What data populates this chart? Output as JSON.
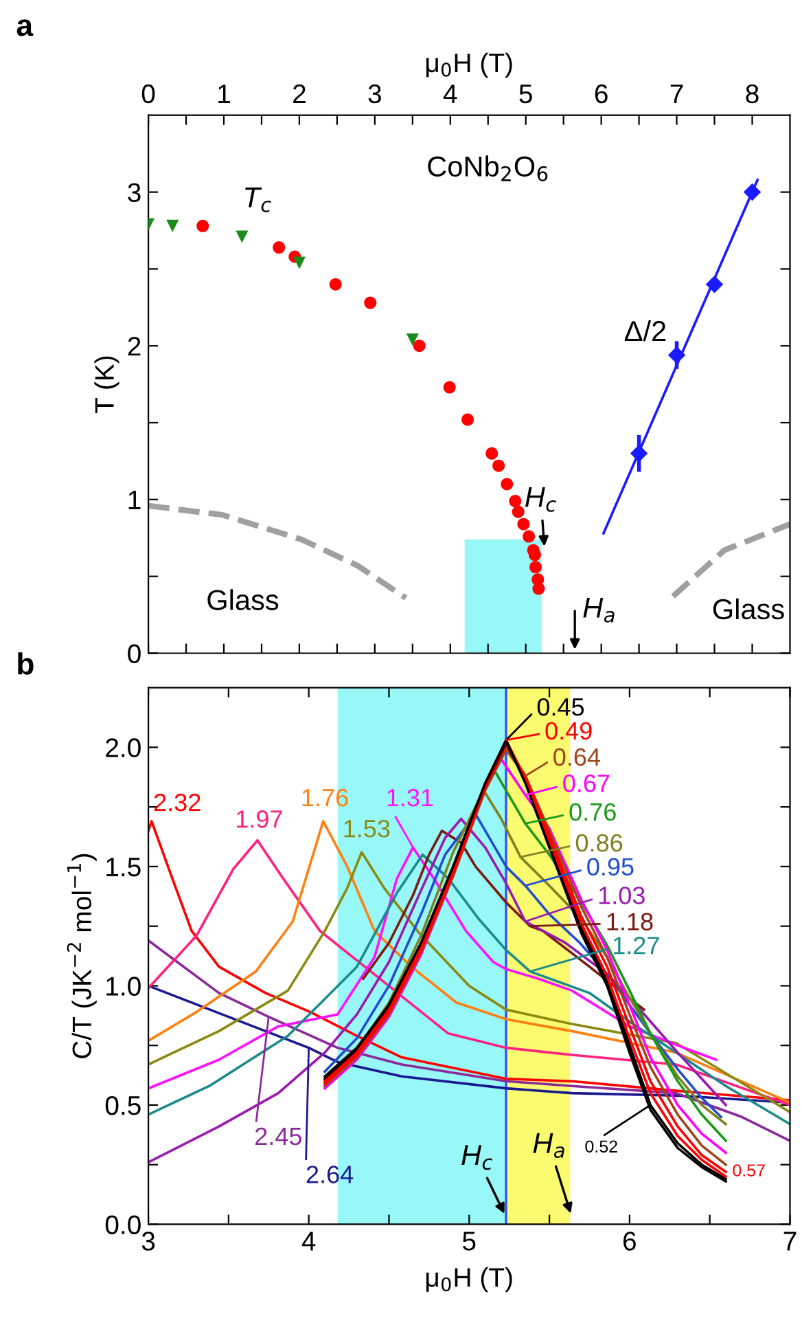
{
  "chart_data": [
    {
      "type": "scatter",
      "title": "a",
      "xlabel": "μ$_{0}$H (T)",
      "ylabel": "T (K)",
      "xlim": [
        0,
        8.5
      ],
      "xticks": [
        0,
        {
          "value": 0.5,
          "label": null
        },
        1,
        {
          "value": 1.5,
          "label": null
        },
        2,
        {
          "value": 2.5,
          "label": null
        },
        3,
        {
          "value": 3.5,
          "label": null
        },
        4,
        {
          "value": 4.5,
          "label": null
        },
        5,
        {
          "value": 5.5,
          "label": null
        },
        6,
        {
          "value": 6.5,
          "label": null
        },
        7,
        {
          "value": 7.5,
          "label": null
        },
        8
      ],
      "ylim": [
        0,
        3.5
      ],
      "yticks": [
        0,
        {
          "value": 0.5,
          "label": null
        },
        1,
        {
          "value": 1.5,
          "label": null
        },
        2,
        {
          "value": 2.5,
          "label": null
        },
        3
      ],
      "grid": false,
      "series": [
        {
          "type": "area",
          "color": "#98f8f8",
          "x": [
            4.19,
            5.21
          ],
          "values": [
            0.74,
            0.74
          ]
        },
        {
          "type": "line",
          "color": "#a0a0a0",
          "line_style": "dashed",
          "marker": "none",
          "x": [
            0,
            0.98,
            2.03,
            2.77,
            3.41
          ],
          "values": [
            0.96,
            0.9,
            0.74,
            0.57,
            0.36
          ]
        },
        {
          "type": "line",
          "color": "#a0a0a0",
          "line_style": "dashed",
          "marker": "none",
          "x": [
            6.95,
            7.63,
            8.5
          ],
          "values": [
            0.37,
            0.67,
            0.84
          ]
        },
        {
          "type": "scatter",
          "color": "#ff0000",
          "marker": "circle",
          "x": [
            0.72,
            1.73,
            1.94,
            2.48,
            2.94,
            3.59,
            3.99,
            4.23,
            4.55,
            4.64,
            4.75,
            4.86,
            4.9,
            4.97,
            5.04,
            5.1,
            5.12,
            5.13,
            5.16,
            5.17
          ],
          "values": [
            2.78,
            2.64,
            2.58,
            2.4,
            2.28,
            2.0,
            1.73,
            1.52,
            1.3,
            1.22,
            1.1,
            0.99,
            0.92,
            0.84,
            0.76,
            0.67,
            0.64,
            0.56,
            0.48,
            0.42
          ]
        },
        {
          "type": "scatter",
          "color": "#1a8a1a",
          "marker": "triangle",
          "x": [
            0,
            0.32,
            1.24,
            2.0,
            3.5
          ],
          "values": [
            2.79,
            2.78,
            2.71,
            2.54,
            2.04
          ]
        },
        {
          "type": "line",
          "color": "#1a1aff",
          "marker": "none",
          "x": [
            6.03,
            8.07
          ],
          "values": [
            0.78,
            3.08
          ]
        },
        {
          "type": "scatter",
          "color": "#1a1aff",
          "marker": "diamond",
          "x": [
            6.5,
            7,
            7.5,
            8
          ],
          "values": [
            1.3,
            1.94,
            2.4,
            3.0
          ],
          "errors": [
            0.12,
            0.09,
            null,
            null
          ]
        }
      ],
      "annotations": [
        "CoNb$_{2}$O$_{6}$",
        "T$_{c}$",
        "Δ/2",
        "Glass",
        "Glass",
        {
          "text": "H$_{c}$",
          "x": 5.25,
          "y": 0.67
        },
        "H$_{a}$"
      ]
    },
    {
      "type": "line",
      "title": "b",
      "xlabel": "μ$_{0}$H (T)",
      "ylabel": "C/T (JK$^{−2}$ mol$^{−1}$)",
      "xlim": [
        3,
        7
      ],
      "xticks": [
        3,
        {
          "value": 3.5,
          "label": null
        },
        4,
        {
          "value": 4.5,
          "label": null
        },
        5,
        {
          "value": 5.5,
          "label": null
        },
        6,
        {
          "value": 6.5,
          "label": null
        },
        7
      ],
      "ylim": [
        0,
        2.25
      ],
      "yticks": [
        "0.0",
        {
          "value": 0.25,
          "label": null
        },
        {
          "value": 0.5,
          "label": "0.5"
        },
        {
          "value": 0.75,
          "label": null
        },
        {
          "value": 1.0,
          "label": "1.0"
        },
        {
          "value": 1.25,
          "label": null
        },
        {
          "value": 1.5,
          "label": "1.5"
        },
        {
          "value": 1.75,
          "label": null
        },
        {
          "value": 2.0,
          "label": "2.0"
        }
      ],
      "grid": false,
      "legend": "right",
      "marker": "none",
      "line_style": "solid",
      "bands": [
        {
          "axis": "x",
          "from": 4.18,
          "to": 5.23,
          "color": "#98f8f8"
        },
        {
          "axis": "x",
          "from": 5.23,
          "to": 5.63,
          "color": "#fbfb70"
        }
      ],
      "ref_lines": [
        {
          "axis": "x",
          "value": 5.23,
          "color": "#3050ff"
        }
      ],
      "series": [
        {
          "name": "0.45",
          "color": "#000000",
          "x": [
            4.1,
            4.3,
            4.5,
            4.7,
            4.9,
            5.1,
            5.23,
            5.35,
            5.5,
            5.7,
            5.86,
            6.0,
            6.13,
            6.3,
            6.45,
            6.6
          ],
          "values": [
            0.62,
            0.74,
            0.92,
            1.18,
            1.5,
            1.85,
            2.03,
            1.85,
            1.58,
            1.22,
            1.0,
            0.72,
            0.48,
            0.32,
            0.24,
            0.18
          ]
        },
        {
          "name": "0.49",
          "color": "#ff0000",
          "x": [
            4.1,
            4.3,
            4.5,
            4.7,
            4.9,
            5.1,
            5.23,
            5.35,
            5.5,
            5.7,
            5.86,
            6.0,
            6.13,
            6.3,
            6.45,
            6.6
          ],
          "values": [
            0.6,
            0.72,
            0.9,
            1.16,
            1.48,
            1.84,
            2.03,
            1.87,
            1.61,
            1.26,
            1.04,
            0.78,
            0.55,
            0.37,
            0.27,
            0.2
          ]
        },
        {
          "name": "0.52",
          "color": "#000000",
          "x": [
            4.1,
            4.3,
            4.5,
            4.7,
            4.9,
            5.1,
            5.23,
            5.35,
            5.5,
            5.7,
            5.86,
            6.0,
            6.13,
            6.3,
            6.45,
            6.6
          ],
          "values": [
            0.61,
            0.73,
            0.91,
            1.17,
            1.49,
            1.84,
            2.02,
            1.86,
            1.59,
            1.24,
            1.02,
            0.75,
            0.5,
            0.34,
            0.25,
            0.19
          ]
        },
        {
          "name": "0.57",
          "color": "#ff0000",
          "x": [
            4.1,
            4.3,
            4.5,
            4.7,
            4.9,
            5.1,
            5.23,
            5.35,
            5.5,
            5.7,
            5.86,
            6.0,
            6.13,
            6.3,
            6.45,
            6.6
          ],
          "values": [
            0.59,
            0.71,
            0.89,
            1.15,
            1.47,
            1.83,
            2.01,
            1.88,
            1.63,
            1.29,
            1.08,
            0.83,
            0.6,
            0.41,
            0.29,
            0.22
          ]
        },
        {
          "name": "0.64",
          "color": "#a0461e",
          "x": [
            4.1,
            4.3,
            4.5,
            4.7,
            4.9,
            5.1,
            5.23,
            5.35,
            5.5,
            5.7,
            5.86,
            6.0,
            6.13,
            6.3,
            6.45,
            6.6
          ],
          "values": [
            0.58,
            0.7,
            0.88,
            1.14,
            1.46,
            1.82,
            1.99,
            1.88,
            1.65,
            1.33,
            1.12,
            0.88,
            0.66,
            0.46,
            0.33,
            0.25
          ]
        },
        {
          "name": "0.67",
          "color": "#ff00ff",
          "x": [
            4.1,
            4.3,
            4.5,
            4.7,
            4.9,
            5.1,
            5.2,
            5.35,
            5.5,
            5.7,
            5.86,
            6.0,
            6.13,
            6.3,
            6.45,
            6.6
          ],
          "values": [
            0.57,
            0.69,
            0.87,
            1.13,
            1.46,
            1.84,
            1.95,
            1.8,
            1.66,
            1.36,
            1.15,
            0.92,
            0.7,
            0.5,
            0.38,
            0.3
          ]
        },
        {
          "name": "0.76",
          "color": "#1a9a1a",
          "x": [
            4.1,
            4.3,
            4.5,
            4.7,
            4.9,
            5.05,
            5.16,
            5.35,
            5.5,
            5.7,
            5.86,
            6.0,
            6.13,
            6.3,
            6.45,
            6.6
          ],
          "values": [
            0.58,
            0.71,
            0.9,
            1.17,
            1.5,
            1.76,
            1.9,
            1.68,
            1.55,
            1.35,
            1.17,
            0.98,
            0.8,
            0.6,
            0.46,
            0.35
          ]
        },
        {
          "name": "0.86",
          "color": "#808020",
          "x": [
            4.1,
            4.3,
            4.5,
            4.7,
            4.9,
            5.09,
            5.2,
            5.32,
            5.5,
            5.7,
            5.86,
            6.0,
            6.13,
            6.3,
            6.45,
            6.6
          ],
          "values": [
            0.6,
            0.73,
            0.93,
            1.21,
            1.56,
            1.82,
            1.7,
            1.54,
            1.42,
            1.28,
            1.12,
            0.95,
            0.8,
            0.62,
            0.5,
            0.42
          ]
        },
        {
          "name": "0.95",
          "color": "#1f4fd0",
          "x": [
            4.1,
            4.3,
            4.5,
            4.7,
            4.85,
            5.04,
            5.23,
            5.35,
            5.5,
            5.69,
            5.86,
            6.0,
            6.13,
            6.3,
            6.45,
            6.57
          ],
          "values": [
            0.64,
            0.78,
            1.0,
            1.3,
            1.55,
            1.72,
            1.5,
            1.42,
            1.3,
            1.18,
            1.05,
            0.92,
            0.8,
            0.65,
            0.53,
            0.45
          ]
        },
        {
          "name": "1.03",
          "color": "#9a1ab0",
          "x": [
            3.0,
            3.44,
            3.81,
            4.1,
            4.3,
            4.5,
            4.7,
            4.85,
            4.95,
            5.1,
            5.23,
            5.35,
            5.6,
            5.86,
            6.0,
            6.3,
            6.6
          ],
          "values": [
            0.26,
            0.41,
            0.55,
            0.72,
            0.88,
            1.1,
            1.4,
            1.62,
            1.7,
            1.58,
            1.43,
            1.27,
            1.18,
            1.05,
            0.95,
            0.72,
            0.5
          ]
        },
        {
          "name": "1.18",
          "color": "#7a1a10",
          "x": [
            4.34,
            4.5,
            4.65,
            4.75,
            4.83,
            4.95,
            5.04,
            5.23,
            5.38,
            5.46,
            5.75,
            5.9,
            6.09
          ],
          "values": [
            1.03,
            1.18,
            1.38,
            1.55,
            1.65,
            1.6,
            1.5,
            1.35,
            1.25,
            1.23,
            1.08,
            1.0,
            0.9
          ]
        },
        {
          "name": "1.27",
          "color": "#1a8a8a",
          "x": [
            3.0,
            3.38,
            3.87,
            4.3,
            4.55,
            4.71,
            4.87,
            5.06,
            5.23,
            5.38,
            5.75,
            6.0,
            6.29,
            6.6,
            7.0
          ],
          "values": [
            0.46,
            0.58,
            0.79,
            1.08,
            1.39,
            1.55,
            1.45,
            1.28,
            1.15,
            1.06,
            0.97,
            0.85,
            0.72,
            0.58,
            0.42
          ]
        },
        {
          "name": "1.31",
          "color": "#ff10ff",
          "x": [
            3.0,
            3.44,
            3.81,
            4.18,
            4.41,
            4.55,
            4.65,
            4.78,
            4.98,
            5.15,
            5.23,
            5.43,
            5.64,
            6.0,
            6.3,
            6.54
          ],
          "values": [
            0.57,
            0.69,
            0.83,
            0.88,
            1.12,
            1.45,
            1.58,
            1.45,
            1.23,
            1.1,
            1.07,
            1.03,
            0.98,
            0.83,
            0.75,
            0.69
          ]
        },
        {
          "name": "1.53",
          "color": "#8a8a10",
          "x": [
            3.0,
            3.44,
            3.87,
            4.1,
            4.24,
            4.33,
            4.47,
            4.69,
            5.0,
            5.23,
            5.64,
            6.29,
            7.0
          ],
          "values": [
            0.67,
            0.81,
            0.98,
            1.23,
            1.41,
            1.56,
            1.41,
            1.22,
            1.0,
            0.9,
            0.84,
            0.76,
            0.47
          ]
        },
        {
          "name": "1.76",
          "color": "#ff8010",
          "x": [
            3.0,
            3.3,
            3.67,
            3.9,
            4.09,
            4.24,
            4.41,
            4.64,
            4.92,
            5.23,
            5.64,
            6.29,
            7.0
          ],
          "values": [
            0.77,
            0.89,
            1.06,
            1.27,
            1.69,
            1.5,
            1.23,
            1.08,
            0.93,
            0.86,
            0.81,
            0.72,
            0.51
          ]
        },
        {
          "name": "1.97",
          "color": "#ff2080",
          "x": [
            3.0,
            3.3,
            3.53,
            3.68,
            3.84,
            4.07,
            4.35,
            4.87,
            5.23,
            5.64,
            6.29,
            7.0
          ],
          "values": [
            0.99,
            1.21,
            1.49,
            1.61,
            1.45,
            1.23,
            1.08,
            0.8,
            0.74,
            0.71,
            0.67,
            0.5
          ]
        },
        {
          "name": "2.32",
          "color": "#ff0000",
          "x": [
            3.0,
            3.02,
            3.16,
            3.27,
            3.44,
            3.73,
            4.01,
            4.3,
            4.58,
            5.23,
            5.64,
            6.29,
            7.0
          ],
          "values": [
            1.65,
            1.69,
            1.43,
            1.23,
            1.08,
            0.97,
            0.89,
            0.79,
            0.7,
            0.61,
            0.6,
            0.56,
            0.52
          ]
        },
        {
          "name": "2.45",
          "color": "#8a2a9a",
          "x": [
            3.0,
            3.44,
            3.75,
            4.18,
            4.58,
            5.23,
            5.64,
            6.29,
            6.7,
            7.0
          ],
          "values": [
            1.19,
            0.97,
            0.87,
            0.74,
            0.67,
            0.6,
            0.58,
            0.55,
            0.45,
            0.35
          ]
        },
        {
          "name": "2.64",
          "color": "#1a1a90",
          "x": [
            3.0,
            3.73,
            4.0,
            4.18,
            4.58,
            5.23,
            5.64,
            6.29,
            7.0
          ],
          "values": [
            1.0,
            0.81,
            0.74,
            0.68,
            0.62,
            0.57,
            0.55,
            0.54,
            0.51
          ]
        }
      ],
      "annotations": [
        {
          "text": "H$_{c}$",
          "x": 5.23,
          "y": 0.03
        },
        {
          "text": "H$_{a}$",
          "x": 5.64,
          "y": 0.03
        }
      ]
    }
  ]
}
